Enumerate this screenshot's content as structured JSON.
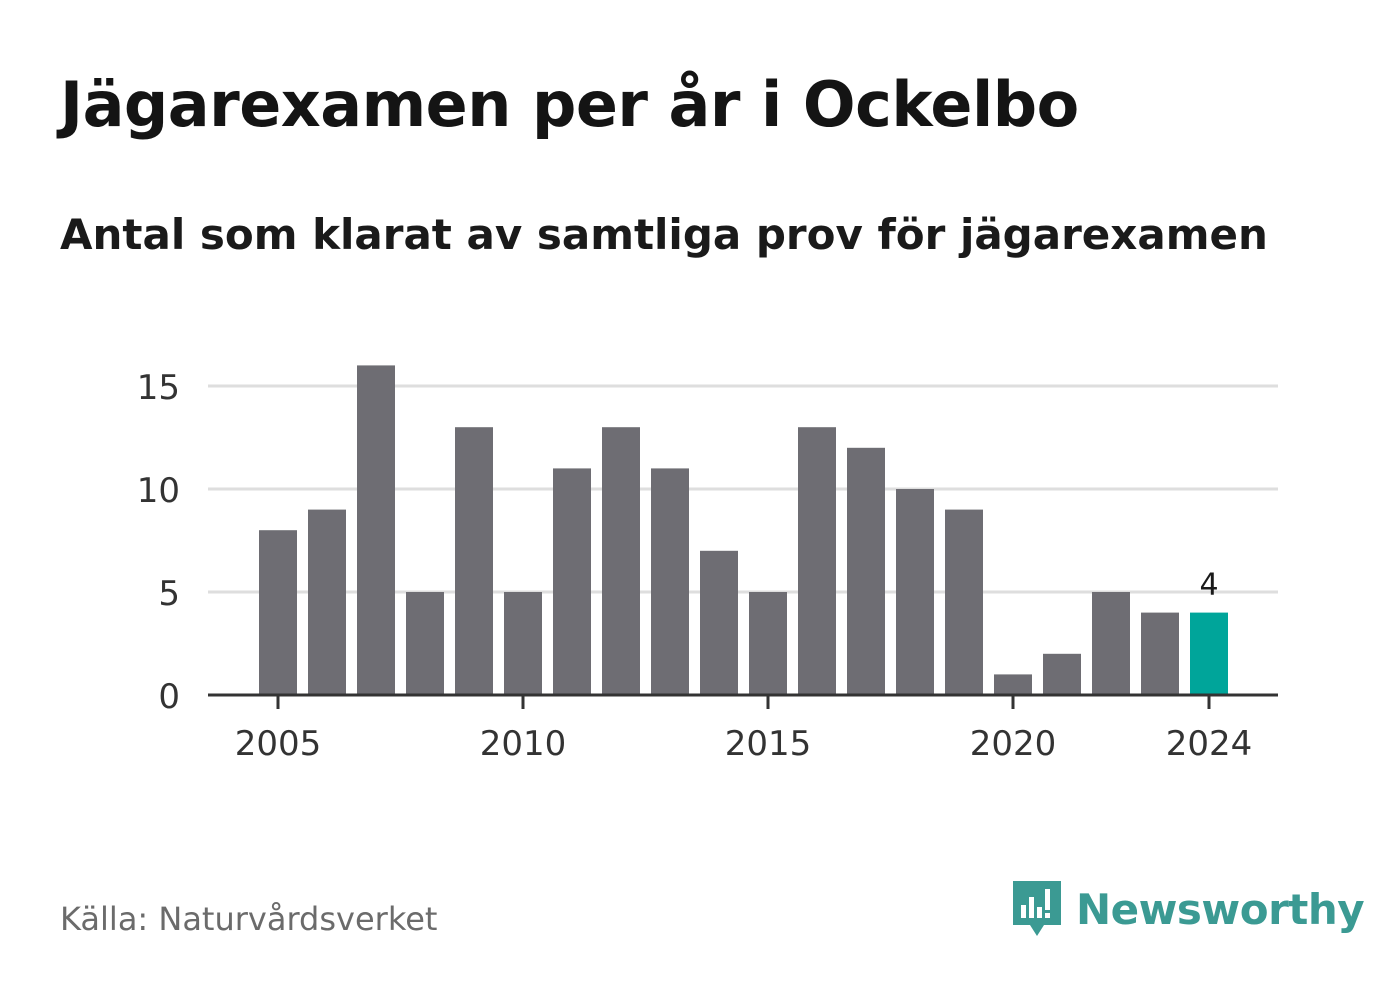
{
  "header": {
    "title": "Jägarexamen per år i Ockelbo",
    "subtitle": "Antal som klarat av samtliga prov för jägarexamen"
  },
  "footer": {
    "source": "Källa: Naturvårdsverket",
    "brand": "Newsworthy",
    "brand_icon": "newsworthy-logo-icon"
  },
  "colors": {
    "bar": "#6e6d73",
    "highlight": "#00a59a",
    "grid": "#dedede",
    "axis": "#333333",
    "brand": "#3b9a93"
  },
  "chart_data": {
    "type": "bar",
    "title": "Jägarexamen per år i Ockelbo",
    "subtitle": "Antal som klarat av samtliga prov för jägarexamen",
    "categories": [
      2005,
      2006,
      2007,
      2008,
      2009,
      2010,
      2011,
      2012,
      2013,
      2014,
      2015,
      2016,
      2017,
      2018,
      2019,
      2020,
      2021,
      2022,
      2023,
      2024
    ],
    "values": [
      8,
      9,
      16,
      5,
      13,
      5,
      11,
      13,
      11,
      7,
      5,
      13,
      12,
      10,
      9,
      1,
      2,
      5,
      4,
      4
    ],
    "x_ticks": [
      2005,
      2010,
      2015,
      2020,
      2024
    ],
    "y_ticks": [
      0,
      5,
      10,
      15
    ],
    "ylim": [
      0,
      16
    ],
    "grid": true,
    "highlight": {
      "category": 2024,
      "label": "4"
    }
  }
}
